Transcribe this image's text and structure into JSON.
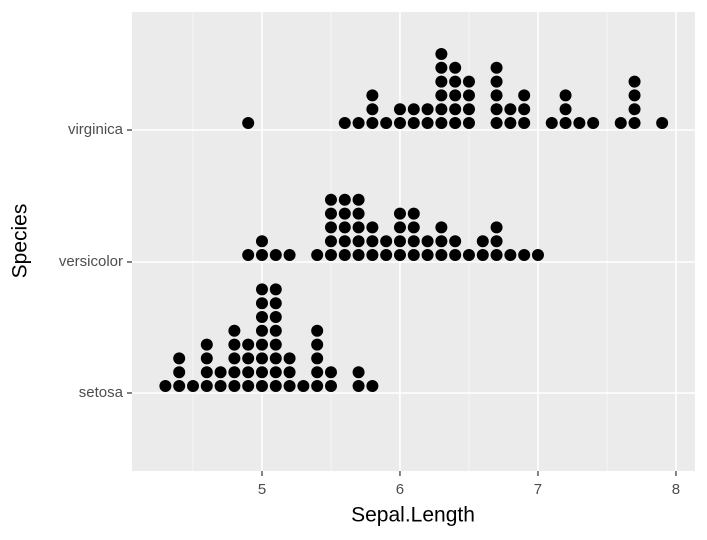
{
  "chart_data": {
    "type": "dotplot",
    "x_label": "Sepal.Length",
    "y_label": "Species",
    "categories": [
      "setosa",
      "versicolor",
      "virginica"
    ],
    "groups": [
      {
        "x": [
          4.3,
          4.4,
          4.5,
          4.6,
          4.7,
          4.8,
          4.9,
          5.0,
          5.1,
          5.2,
          5.3,
          5.4,
          5.5,
          5.7,
          5.8
        ],
        "counts": [
          1,
          3,
          1,
          4,
          2,
          5,
          4,
          8,
          8,
          3,
          1,
          5,
          2,
          2,
          1
        ]
      },
      {
        "x": [
          4.9,
          5.0,
          5.1,
          5.2,
          5.4,
          5.5,
          5.6,
          5.7,
          5.8,
          5.9,
          6.0,
          6.1,
          6.2,
          6.3,
          6.4,
          6.5,
          6.6,
          6.7,
          6.8,
          6.9,
          7.0
        ],
        "counts": [
          1,
          2,
          1,
          1,
          1,
          5,
          5,
          5,
          3,
          2,
          4,
          4,
          2,
          3,
          2,
          1,
          2,
          3,
          1,
          1,
          1
        ]
      },
      {
        "x": [
          4.9,
          5.6,
          5.7,
          5.8,
          5.9,
          6.0,
          6.1,
          6.2,
          6.3,
          6.4,
          6.5,
          6.7,
          6.8,
          6.9,
          7.1,
          7.2,
          7.3,
          7.4,
          7.6,
          7.7,
          7.9
        ],
        "counts": [
          1,
          1,
          1,
          3,
          1,
          2,
          2,
          2,
          6,
          5,
          4,
          5,
          2,
          3,
          1,
          3,
          1,
          1,
          1,
          4,
          1
        ]
      }
    ],
    "color": "#000000",
    "xlim": [
      4.058,
      8.138
    ],
    "xticks": [
      5,
      6,
      7,
      8
    ],
    "xminor": [
      4.5,
      5.5,
      6.5,
      7.5
    ],
    "grid": true
  }
}
